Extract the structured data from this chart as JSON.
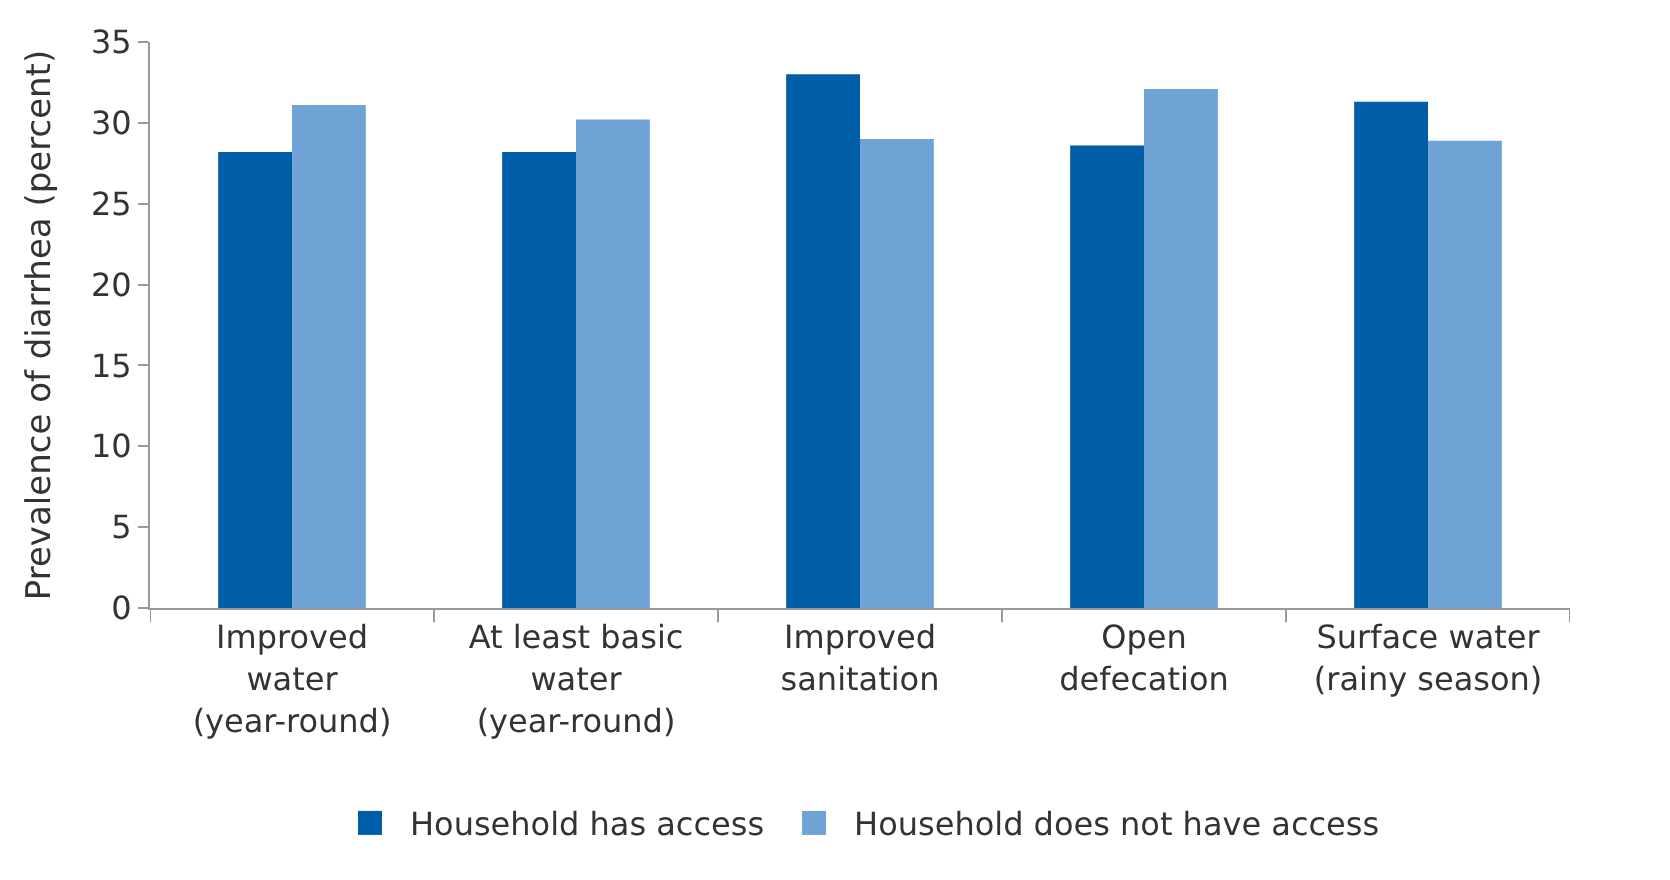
{
  "chart_data": {
    "type": "bar",
    "ylabel": "Prevalence of diarrhea (percent)",
    "categories": [
      "Improved\nwater\n(year-round)",
      "At least basic\nwater\n(year-round)",
      "Improved\nsanitation",
      "Open\ndefecation",
      "Surface water\n(rainy season)"
    ],
    "series": [
      {
        "name": "Household has access",
        "color": "#005ea8",
        "values": [
          28.2,
          28.2,
          33.0,
          28.6,
          31.3
        ]
      },
      {
        "name": "Household does not have access",
        "color": "#6fa3d6",
        "values": [
          31.1,
          30.2,
          29.0,
          32.1,
          28.9
        ]
      }
    ],
    "ylim": [
      0,
      35
    ],
    "yticks": [
      0,
      5,
      10,
      15,
      20,
      25,
      30,
      35
    ],
    "legend": "bottom"
  }
}
